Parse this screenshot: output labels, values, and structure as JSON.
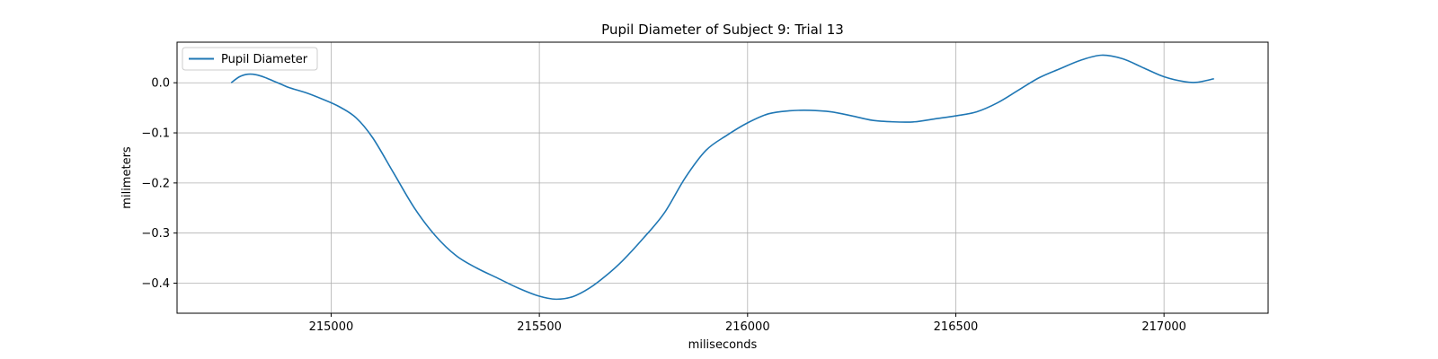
{
  "chart_data": {
    "type": "line",
    "title": "Pupil Diameter of Subject 9: Trial 13",
    "xlabel": "miliseconds",
    "ylabel": "milimeters",
    "xlim": [
      214630,
      217250
    ],
    "ylim": [
      -0.46,
      0.081
    ],
    "xticks": [
      215000,
      215500,
      216000,
      216500,
      217000
    ],
    "yticks": [
      0.0,
      -0.1,
      -0.2,
      -0.3,
      -0.4
    ],
    "ytick_labels": [
      "0.0",
      "−0.1",
      "−0.2",
      "−0.3",
      "−0.4"
    ],
    "grid": true,
    "legend": "top-left",
    "color": "#1f77b4",
    "series": [
      {
        "name": "Pupil Diameter",
        "x": [
          214760,
          214780,
          214800,
          214820,
          214840,
          214860,
          214880,
          214900,
          214940,
          214980,
          215020,
          215060,
          215100,
          215150,
          215200,
          215250,
          215300,
          215350,
          215400,
          215450,
          215500,
          215540,
          215580,
          215620,
          215660,
          215700,
          215750,
          215800,
          215850,
          215900,
          215950,
          216000,
          216050,
          216100,
          216150,
          216200,
          216250,
          216300,
          216350,
          216400,
          216450,
          216500,
          216550,
          216600,
          216650,
          216700,
          216750,
          216800,
          216850,
          216900,
          216950,
          217000,
          217050,
          217080,
          217120
        ],
        "y": [
          0.0,
          0.012,
          0.017,
          0.016,
          0.011,
          0.004,
          -0.003,
          -0.01,
          -0.02,
          -0.033,
          -0.048,
          -0.07,
          -0.11,
          -0.18,
          -0.25,
          -0.305,
          -0.345,
          -0.37,
          -0.39,
          -0.41,
          -0.426,
          -0.432,
          -0.427,
          -0.41,
          -0.385,
          -0.355,
          -0.31,
          -0.26,
          -0.19,
          -0.135,
          -0.105,
          -0.08,
          -0.062,
          -0.056,
          -0.055,
          -0.058,
          -0.066,
          -0.075,
          -0.078,
          -0.078,
          -0.072,
          -0.066,
          -0.058,
          -0.04,
          -0.015,
          0.01,
          0.028,
          0.045,
          0.055,
          0.048,
          0.03,
          0.012,
          0.002,
          0.001,
          0.008
        ]
      }
    ]
  }
}
